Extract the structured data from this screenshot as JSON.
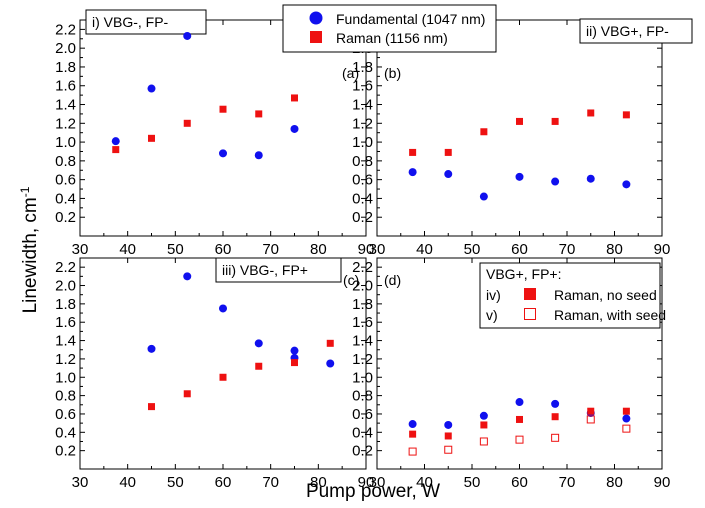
{
  "colors": {
    "fundamental": "#1010ee",
    "raman": "#ee1111",
    "axis": "#000000"
  },
  "figure_axes": {
    "xlabel": "Pump power, W",
    "ylabel": "Linewidth, cm",
    "ylabel_sup": "-1"
  },
  "legend": {
    "entries": [
      {
        "label": "Fundamental (1047 nm)",
        "marker": "circle"
      },
      {
        "label": "Raman (1156 nm)",
        "marker": "square"
      }
    ]
  },
  "chart_data": [
    {
      "type": "scatter",
      "panel": "(a)",
      "title": "i) VBG-, FP-",
      "xlim": [
        30,
        90
      ],
      "ylim": [
        0,
        2.3
      ],
      "xticks": [
        30,
        40,
        50,
        60,
        70,
        80,
        90
      ],
      "yticks": [
        0.2,
        0.4,
        0.6,
        0.8,
        1.0,
        1.2,
        1.4,
        1.6,
        1.8,
        2.0,
        2.2
      ],
      "series": [
        {
          "name": "Fundamental (1047 nm)",
          "marker": "circle",
          "x": [
            37.5,
            45,
            52.5,
            60,
            67.5,
            75
          ],
          "y": [
            1.01,
            1.57,
            2.13,
            0.88,
            0.86,
            1.14
          ]
        },
        {
          "name": "Raman (1156 nm)",
          "marker": "square",
          "x": [
            37.5,
            45,
            52.5,
            60,
            67.5,
            75
          ],
          "y": [
            0.92,
            1.04,
            1.2,
            1.35,
            1.3,
            1.47
          ]
        }
      ]
    },
    {
      "type": "scatter",
      "panel": "(b)",
      "title": "ii) VBG+, FP-",
      "xlim": [
        30,
        90
      ],
      "ylim": [
        0,
        2.3
      ],
      "xticks": [
        30,
        40,
        50,
        60,
        70,
        80,
        90
      ],
      "yticks": [
        0.2,
        0.4,
        0.6,
        0.8,
        1.0,
        1.2,
        1.4,
        1.6,
        1.8,
        2.0,
        2.2
      ],
      "series": [
        {
          "name": "Fundamental (1047 nm)",
          "marker": "circle",
          "x": [
            37.5,
            45,
            52.5,
            60,
            67.5,
            75,
            82.5
          ],
          "y": [
            0.68,
            0.66,
            0.42,
            0.63,
            0.58,
            0.61,
            0.55
          ]
        },
        {
          "name": "Raman (1156 nm)",
          "marker": "square",
          "x": [
            37.5,
            45,
            52.5,
            60,
            67.5,
            75,
            82.5
          ],
          "y": [
            0.89,
            0.89,
            1.11,
            1.22,
            1.22,
            1.31,
            1.29
          ]
        }
      ]
    },
    {
      "type": "scatter",
      "panel": "(c)",
      "title": "iii) VBG-, FP+",
      "xlim": [
        30,
        90
      ],
      "ylim": [
        0,
        2.3
      ],
      "xticks": [
        30,
        40,
        50,
        60,
        70,
        80,
        90
      ],
      "yticks": [
        0.2,
        0.4,
        0.6,
        0.8,
        1.0,
        1.2,
        1.4,
        1.6,
        1.8,
        2.0,
        2.2
      ],
      "series": [
        {
          "name": "Fundamental (1047 nm)",
          "marker": "circle",
          "x": [
            45,
            52.5,
            60,
            67.5,
            75,
            75,
            82.5
          ],
          "y": [
            1.31,
            2.1,
            1.75,
            1.37,
            1.29,
            1.21,
            1.15
          ]
        },
        {
          "name": "Raman (1156 nm)",
          "marker": "square",
          "x": [
            45,
            52.5,
            60,
            67.5,
            75,
            82.5
          ],
          "y": [
            0.68,
            0.82,
            1.0,
            1.12,
            1.16,
            1.37
          ]
        }
      ]
    },
    {
      "type": "scatter",
      "panel": "(d)",
      "title": "",
      "xlim": [
        30,
        90
      ],
      "ylim": [
        0,
        2.3
      ],
      "xticks": [
        30,
        40,
        50,
        60,
        70,
        80,
        90
      ],
      "yticks": [
        0.2,
        0.4,
        0.6,
        0.8,
        1.0,
        1.2,
        1.4,
        1.6,
        1.8,
        2.0,
        2.2
      ],
      "legend": {
        "title": "VBG+, FP+:",
        "entries": [
          {
            "prefix": "iv)",
            "label": "Raman, no seed",
            "marker": "square"
          },
          {
            "prefix": "v)",
            "label": "Raman, with seed",
            "marker": "square-open"
          }
        ]
      },
      "series": [
        {
          "name": "Fundamental (1047 nm)",
          "marker": "circle",
          "x": [
            37.5,
            45,
            52.5,
            60,
            67.5,
            75,
            82.5
          ],
          "y": [
            0.49,
            0.48,
            0.58,
            0.73,
            0.71,
            0.61,
            0.55
          ]
        },
        {
          "name": "Raman, no seed",
          "marker": "square",
          "x": [
            37.5,
            45,
            52.5,
            60,
            67.5,
            75,
            82.5
          ],
          "y": [
            0.38,
            0.36,
            0.48,
            0.54,
            0.57,
            0.63,
            0.63
          ]
        },
        {
          "name": "Raman, with seed",
          "marker": "square-open",
          "x": [
            37.5,
            45,
            52.5,
            60,
            67.5,
            75,
            82.5
          ],
          "y": [
            0.19,
            0.21,
            0.3,
            0.32,
            0.34,
            0.54,
            0.44
          ]
        }
      ]
    }
  ]
}
